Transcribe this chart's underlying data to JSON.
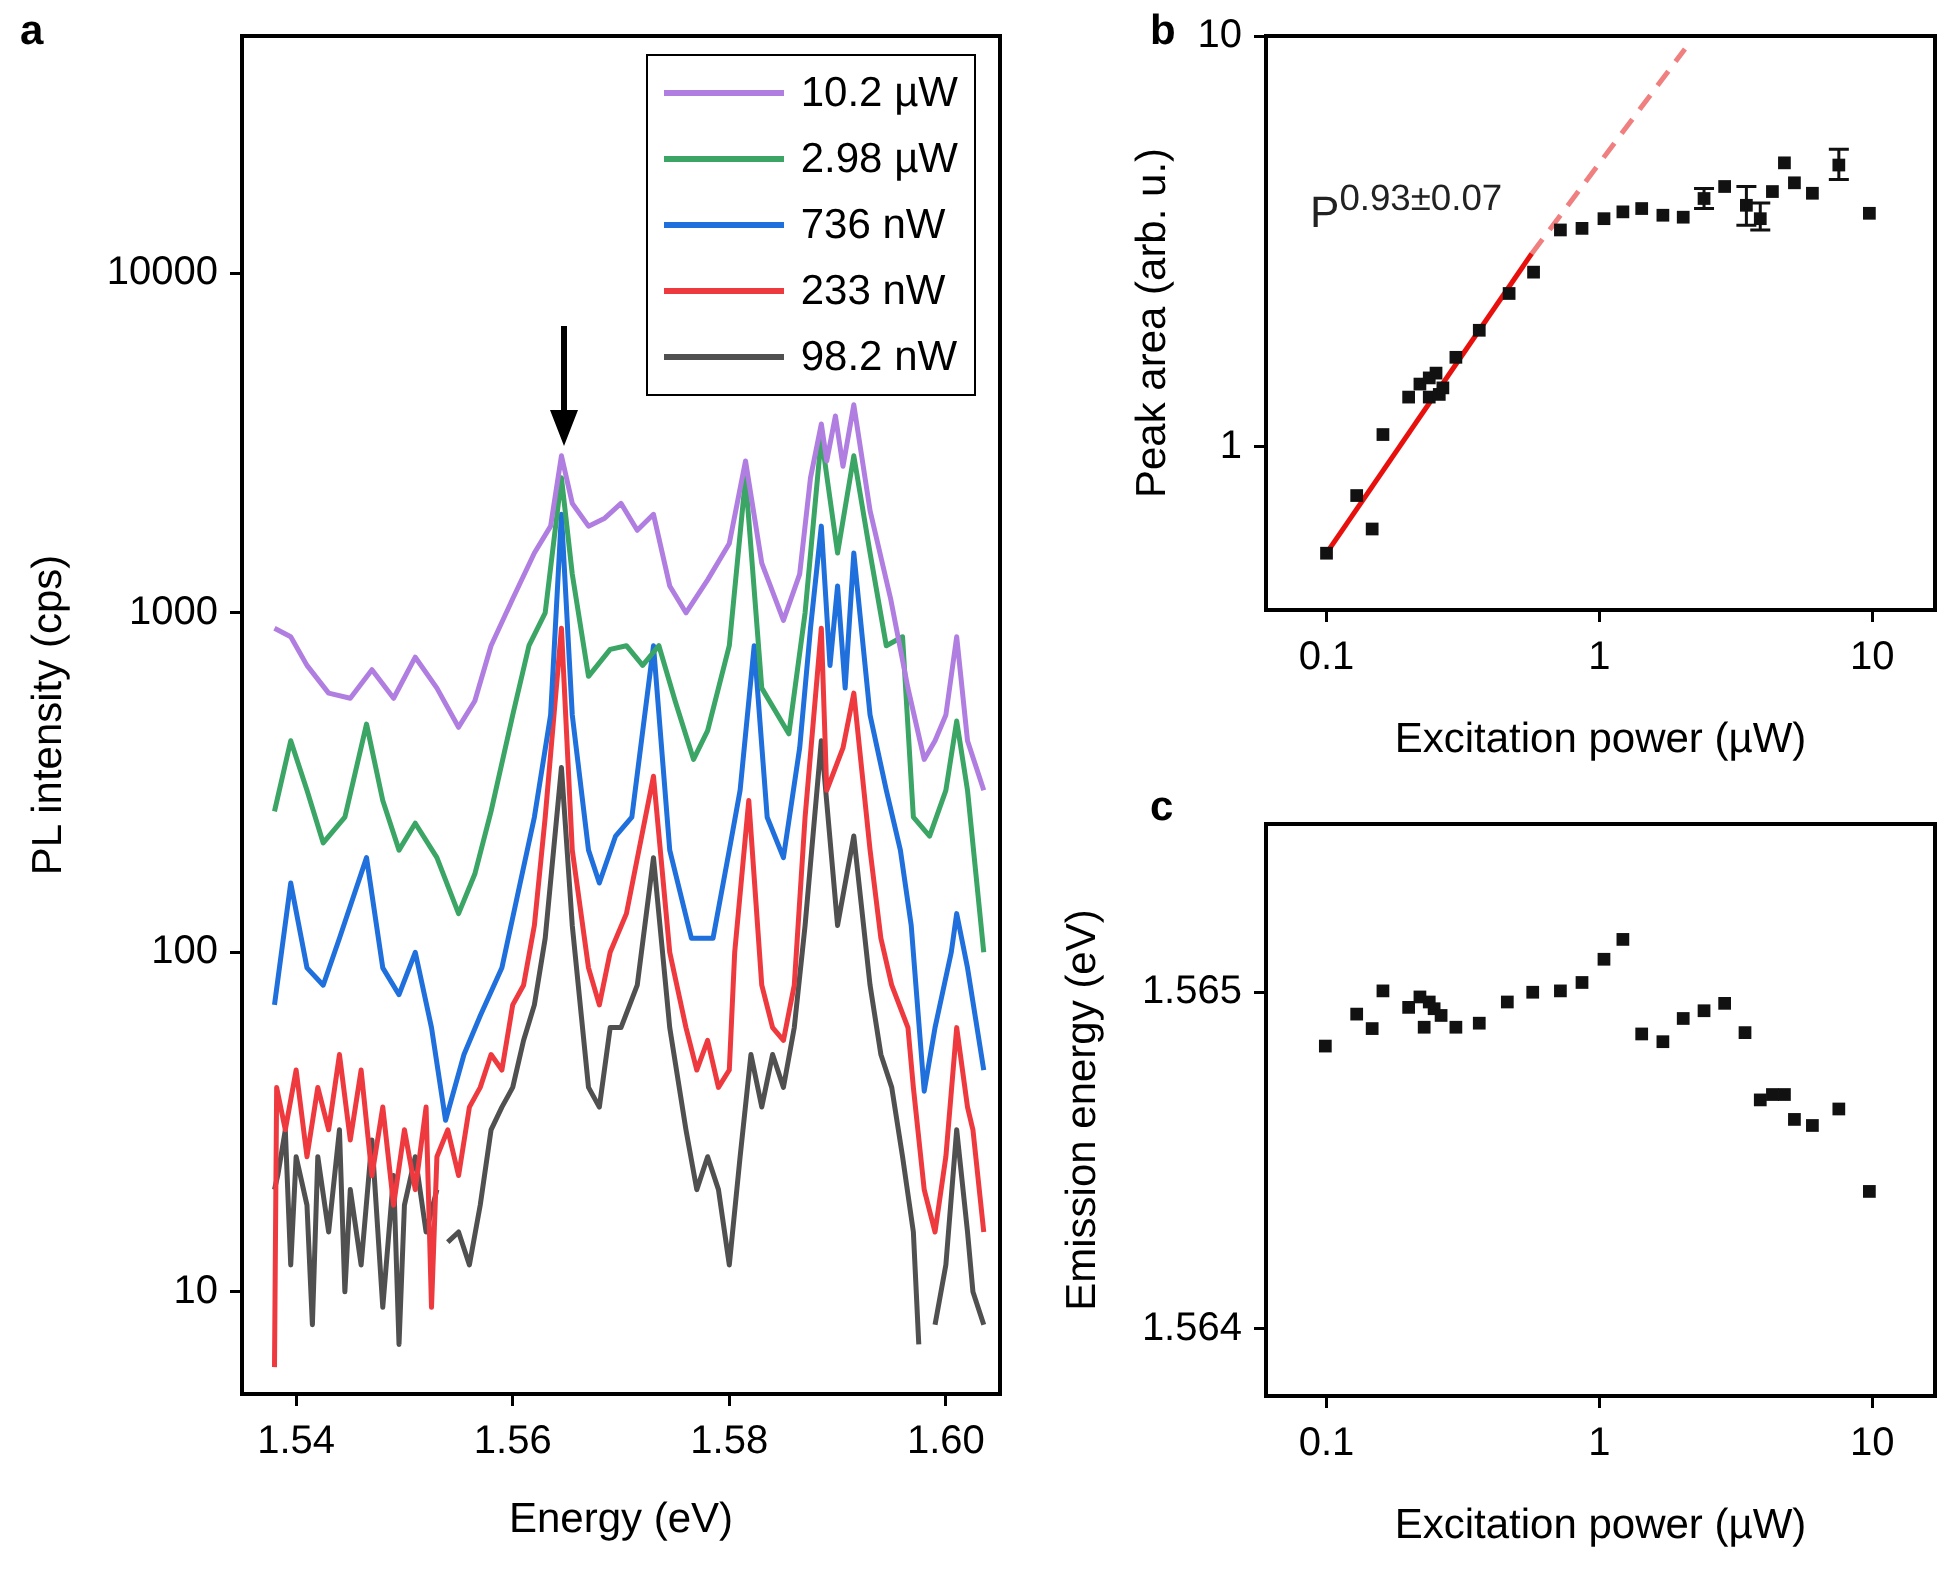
{
  "chart_data": [
    {
      "type": "line",
      "xlabel": "Energy (eV)",
      "ylabel": "PL intensity (cps)",
      "annotations": [
        "a"
      ],
      "log": "y",
      "marker": "none",
      "legend": "top right",
      "xlim": [
        1.535,
        1.605
      ],
      "xticks": [
        1.54,
        1.56,
        1.58,
        {
          "value": 1.6,
          "label": "1.60"
        }
      ],
      "ylim": [
        5,
        50000
      ],
      "yticks": [
        10,
        100,
        1000,
        10000
      ],
      "series": [
        {
          "name": "10.2 µW",
          "color": "#b07ee0",
          "x": [
            1.538,
            1.5395,
            1.541,
            1.543,
            1.545,
            1.547,
            1.549,
            1.551,
            1.553,
            1.555,
            1.5565,
            1.558,
            1.56,
            1.562,
            1.5635,
            1.5645,
            1.5655,
            1.567,
            1.5685,
            1.57,
            1.5715,
            1.573,
            1.5745,
            1.576,
            1.578,
            1.58,
            1.5815,
            1.583,
            1.585,
            1.5865,
            1.5875,
            1.5885,
            1.589,
            1.5898,
            1.5905,
            1.5915,
            1.593,
            1.5949,
            1.5965,
            1.598,
            1.599,
            1.6,
            1.601,
            1.602,
            1.6035
          ],
          "values": [
            900,
            850,
            700,
            580,
            560,
            680,
            560,
            740,
            600,
            460,
            550,
            800,
            1100,
            1500,
            1800,
            2900,
            2100,
            1800,
            1900,
            2100,
            1750,
            1950,
            1200,
            1000,
            1250,
            1600,
            2800,
            1400,
            950,
            1300,
            2500,
            3600,
            2800,
            3800,
            2700,
            4100,
            2000,
            1100,
            600,
            370,
            420,
            500,
            850,
            420,
            300
          ]
        },
        {
          "name": "2.98 µW",
          "color": "#3aa564",
          "x": [
            1.538,
            1.5395,
            1.541,
            1.5425,
            1.5445,
            1.5465,
            1.548,
            1.5495,
            1.551,
            1.553,
            1.555,
            1.5565,
            1.558,
            1.56,
            1.5615,
            1.563,
            1.5645,
            1.5655,
            1.567,
            1.569,
            1.5705,
            1.572,
            1.5735,
            1.575,
            1.5767,
            1.578,
            1.58,
            1.5815,
            1.583,
            1.5855,
            1.587,
            1.5885,
            1.59,
            1.5915,
            1.593,
            1.5945,
            1.596,
            1.597,
            1.5985,
            1.6,
            1.601,
            1.602,
            1.6035
          ],
          "values": [
            260,
            420,
            300,
            210,
            250,
            470,
            280,
            200,
            240,
            190,
            130,
            170,
            260,
            500,
            800,
            1000,
            2500,
            1300,
            650,
            780,
            800,
            700,
            800,
            550,
            370,
            450,
            800,
            2500,
            600,
            440,
            1000,
            3300,
            1500,
            2900,
            1500,
            800,
            850,
            250,
            220,
            300,
            480,
            300,
            100
          ]
        },
        {
          "name": "736 nW",
          "color": "#1f6fdc",
          "x": [
            1.538,
            1.5395,
            1.541,
            1.5425,
            1.544,
            1.5465,
            1.548,
            1.5495,
            1.551,
            1.5525,
            1.5538,
            1.5555,
            1.557,
            1.559,
            1.5605,
            1.562,
            1.5635,
            1.5645,
            1.5655,
            1.567,
            1.568,
            1.5695,
            1.571,
            1.573,
            1.5745,
            1.5765,
            1.5785,
            1.58,
            1.581,
            1.5823,
            1.5835,
            1.585,
            1.5865,
            1.5875,
            1.5885,
            1.5893,
            1.59,
            1.5907,
            1.5915,
            1.593,
            1.5945,
            1.5958,
            1.5968,
            1.598,
            1.599,
            1.6005,
            1.601,
            1.602,
            1.6035
          ],
          "values": [
            70,
            160,
            90,
            80,
            110,
            190,
            90,
            75,
            100,
            60,
            32,
            50,
            65,
            90,
            150,
            250,
            500,
            1950,
            500,
            200,
            160,
            220,
            250,
            800,
            200,
            110,
            110,
            200,
            300,
            800,
            250,
            190,
            400,
            900,
            1800,
            700,
            1200,
            600,
            1500,
            500,
            300,
            200,
            120,
            39,
            60,
            100,
            130,
            90,
            45
          ]
        },
        {
          "name": "233 nW",
          "color": "#ee3a3f",
          "x": [
            1.538,
            1.5382,
            1.539,
            1.54,
            1.541,
            1.542,
            1.543,
            1.544,
            1.545,
            1.546,
            1.547,
            1.548,
            1.549,
            1.55,
            1.551,
            1.552,
            1.5525,
            1.553,
            1.554,
            1.555,
            1.556,
            1.557,
            1.558,
            1.559,
            1.56,
            1.561,
            1.562,
            1.563,
            1.5645,
            1.5655,
            1.567,
            1.568,
            1.569,
            1.5705,
            1.573,
            1.5745,
            1.576,
            1.577,
            1.578,
            1.579,
            1.58,
            1.5805,
            1.5818,
            1.583,
            1.584,
            1.585,
            1.586,
            1.587,
            1.5885,
            1.589,
            1.5905,
            1.5915,
            1.593,
            1.594,
            1.595,
            1.5965,
            1.597,
            1.598,
            1.599,
            1.6,
            1.601,
            1.602,
            1.6025,
            1.6035
          ],
          "values": [
            6,
            40,
            30,
            45,
            25,
            40,
            30,
            50,
            28,
            45,
            22,
            35,
            18,
            30,
            20,
            35,
            9,
            25,
            30,
            22,
            35,
            40,
            50,
            45,
            70,
            80,
            120,
            250,
            900,
            200,
            90,
            70,
            100,
            130,
            330,
            100,
            60,
            45,
            55,
            40,
            45,
            100,
            280,
            80,
            60,
            55,
            80,
            250,
            900,
            300,
            400,
            580,
            200,
            110,
            80,
            60,
            40,
            20,
            15,
            25,
            60,
            35,
            30,
            15
          ]
        },
        {
          "name": "98.2 nW",
          "color": "#505050",
          "x": [
            1.538,
            1.5383,
            1.539,
            1.5395,
            1.54,
            1.541,
            1.5415,
            1.542,
            1.543,
            1.544,
            1.5445,
            1.545,
            1.546,
            1.547,
            1.548,
            1.549,
            1.5495,
            1.55,
            1.551,
            1.552,
            1.553,
            1.5535,
            1.554,
            1.555,
            1.556,
            1.557,
            1.558,
            1.559,
            1.56,
            1.561,
            1.562,
            1.563,
            1.5645,
            1.5655,
            1.567,
            1.568,
            1.569,
            1.57,
            1.5715,
            1.573,
            1.5745,
            1.576,
            1.577,
            1.578,
            1.579,
            1.58,
            1.581,
            1.582,
            1.583,
            1.584,
            1.585,
            1.586,
            1.587,
            1.5885,
            1.59,
            1.5915,
            1.593,
            1.594,
            1.595,
            1.596,
            1.597,
            1.5975,
            1.598,
            1.599,
            1.6,
            1.601,
            1.602,
            1.6025,
            1.6035
          ],
          "values": [
            20,
            22,
            30,
            12,
            25,
            18,
            8,
            25,
            15,
            30,
            10,
            20,
            12,
            28,
            9,
            22,
            7,
            18,
            25,
            15,
            20,
            null,
            14,
            15,
            12,
            18,
            30,
            35,
            40,
            55,
            70,
            110,
            350,
            120,
            40,
            35,
            60,
            60,
            80,
            190,
            60,
            30,
            20,
            25,
            20,
            12,
            25,
            50,
            35,
            50,
            40,
            60,
            120,
            420,
            120,
            220,
            80,
            50,
            40,
            25,
            15,
            7,
            null,
            8,
            12,
            30,
            15,
            10,
            8
          ]
        }
      ]
    },
    {
      "type": "scatter",
      "xlabel": "Excitation power (µW)",
      "ylabel": "Peak area (arb. u.)",
      "annotations": [
        "b",
        "P$^{0.93±0.07}$"
      ],
      "log": "xy",
      "marker": "square",
      "xlim": [
        0.06,
        17
      ],
      "xticks": [
        0.1,
        1,
        10
      ],
      "ylim": [
        0.4,
        10
      ],
      "yticks": [
        1,
        10
      ],
      "series": [
        {
          "color": "#111111",
          "x": [
            0.1,
            0.129,
            0.147,
            0.161,
            0.2,
            0.22,
            0.238,
            0.252,
            0.238,
            0.259,
            0.267,
            0.298,
            0.363,
            0.467,
            0.574,
            0.72,
            0.864,
            1.04,
            1.22,
            1.43,
            1.71,
            2.03,
            2.42,
            2.88,
            3.46,
            3.89,
            4.31,
            4.77,
            5.19,
            6.04,
            7.55,
            9.77
          ],
          "values": [
            0.55,
            0.76,
            0.63,
            1.07,
            1.32,
            1.42,
            1.47,
            1.51,
            1.32,
            1.34,
            1.39,
            1.65,
            1.92,
            2.36,
            2.66,
            3.37,
            3.4,
            3.59,
            3.73,
            3.8,
            3.66,
            3.62,
            4.02,
            4.3,
            3.87,
            3.59,
            4.18,
            4.91,
            4.39,
            4.14,
            4.85,
            3.7
          ],
          "errors": [
            null,
            null,
            null,
            null,
            null,
            null,
            null,
            null,
            null,
            null,
            null,
            null,
            null,
            null,
            null,
            null,
            null,
            null,
            null,
            null,
            null,
            null,
            [
              3.8,
              4.25
            ],
            null,
            [
              3.46,
              4.3
            ],
            [
              3.37,
              3.92
            ],
            null,
            null,
            null,
            null,
            [
              4.47,
              5.3
            ],
            null
          ]
        },
        {
          "type": "line",
          "color": "#e8100d",
          "marker": "none",
          "x": [
            0.1,
            0.565
          ],
          "values": [
            0.55,
            2.95
          ]
        },
        {
          "type": "line",
          "color": "#f08080",
          "marker": "none",
          "line_style": "dashed",
          "x": [
            0.565,
            2.06
          ],
          "values": [
            2.95,
            9.3
          ]
        }
      ]
    },
    {
      "type": "scatter",
      "xlabel": "Excitation power (µW)",
      "ylabel": "Emission energy (eV)",
      "annotations": [
        "c"
      ],
      "log": "x",
      "marker": "square",
      "xlim": [
        0.06,
        17
      ],
      "xticks": [
        0.1,
        1,
        10
      ],
      "ylim": [
        1.5638,
        1.5655
      ],
      "yticks": [
        1.564,
        1.565
      ],
      "series": [
        {
          "color": "#111111",
          "x": [
            0.099,
            0.129,
            0.147,
            0.161,
            0.2,
            0.22,
            0.228,
            0.238,
            0.248,
            0.263,
            0.298,
            0.363,
            0.46,
            0.57,
            0.72,
            0.864,
            1.04,
            1.22,
            1.43,
            1.71,
            2.03,
            2.42,
            2.88,
            3.42,
            3.89,
            4.31,
            4.77,
            5.19,
            6.04,
            7.55,
            9.77
          ],
          "values": [
            1.56484,
            1.564935,
            1.564892,
            1.565004,
            1.564955,
            1.564986,
            1.564896,
            1.564971,
            1.564951,
            1.564931,
            1.564896,
            1.564908,
            1.564971,
            1.565,
            1.565004,
            1.565029,
            1.565098,
            1.565157,
            1.564876,
            1.564853,
            1.564922,
            1.564945,
            1.564967,
            1.56488,
            1.56468,
            1.564696,
            1.564696,
            1.564622,
            1.564604,
            1.564653,
            1.564408
          ]
        }
      ]
    }
  ]
}
